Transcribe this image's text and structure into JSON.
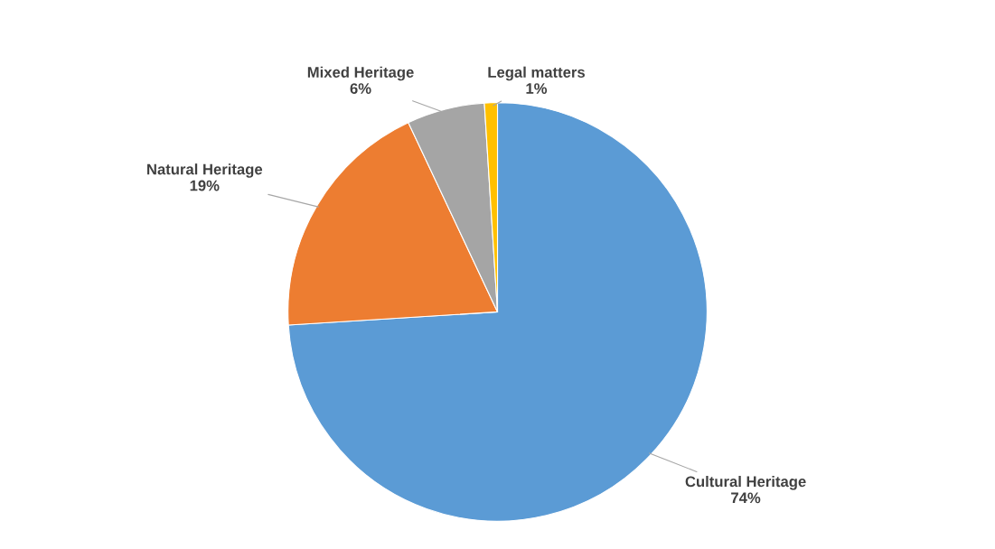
{
  "chart_data": {
    "type": "pie",
    "categories": [
      "Cultural Heritage",
      "Natural Heritage",
      "Mixed Heritage",
      "Legal matters"
    ],
    "values": [
      74,
      19,
      6,
      1
    ],
    "colors": [
      "#5b9bd5",
      "#ed7d31",
      "#a5a5a5",
      "#ffc000"
    ],
    "value_labels": [
      "74%",
      "19%",
      "6%",
      "1%"
    ],
    "legend": false
  }
}
